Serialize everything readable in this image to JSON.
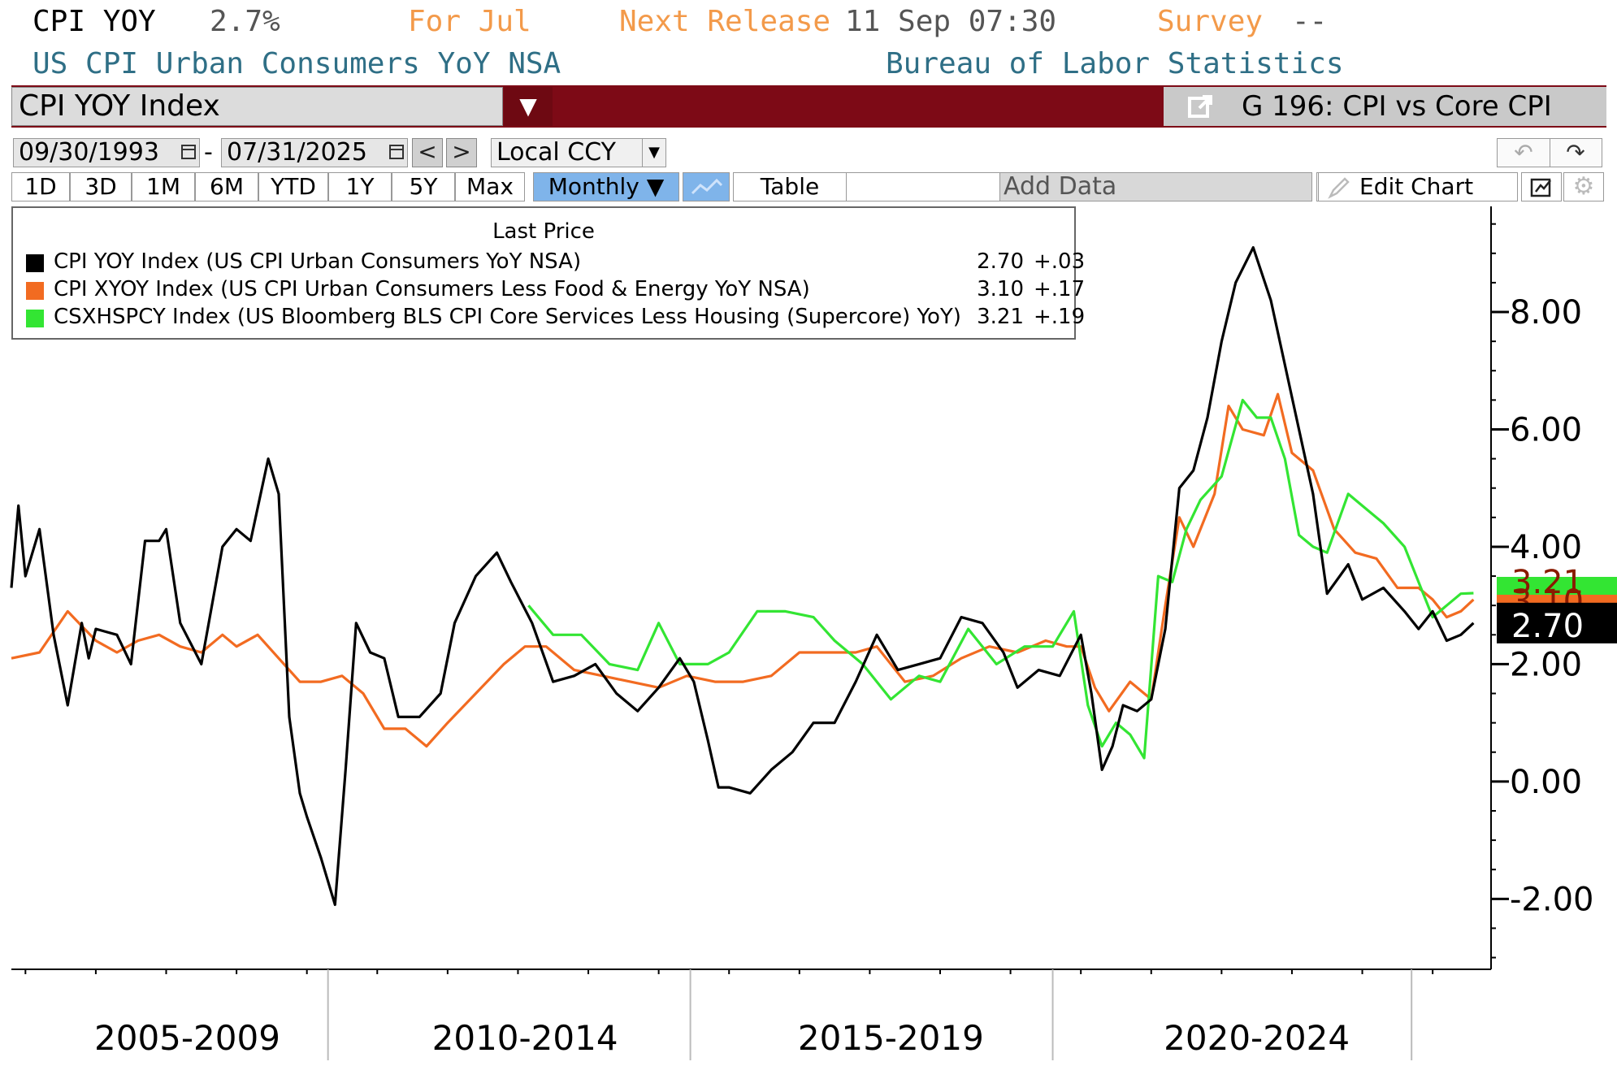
{
  "header": {
    "ticker": "CPI YOY",
    "last_value": "2.7%",
    "period_label": "For Jul",
    "release_label": "Next Release",
    "release_time": "11 Sep 07:30",
    "survey_label": "Survey",
    "survey_value": "--",
    "description": "US CPI Urban Consumers YoY NSA",
    "source": "Bureau of Labor Statistics"
  },
  "security": {
    "name": "CPI YOY Index",
    "chart_name": "G 196: CPI vs Core CPI"
  },
  "toolbar": {
    "start_date": "09/30/1993",
    "date_separator": "-",
    "end_date": "07/31/2025",
    "prev": "<",
    "next": ">",
    "currency": "Local CCY",
    "ranges": [
      "1D",
      "3D",
      "1M",
      "6M",
      "YTD",
      "1Y",
      "5Y",
      "Max"
    ],
    "frequency": "Monthly ▼",
    "table": "Table",
    "add_data": "Add Data",
    "edit_chart": "Edit Chart"
  },
  "legend": {
    "title": "Last Price",
    "rows": [
      {
        "name": "CPI YOY Index (US CPI Urban Consumers YoY NSA)",
        "value": "2.70",
        "change": "+.03",
        "color": "#000000"
      },
      {
        "name": "CPI XYOY Index (US CPI Urban Consumers Less Food & Energy YoY NSA)",
        "value": "3.10",
        "change": "+.17",
        "color": "#f26b21"
      },
      {
        "name": "CSXHSPCY Index (US Bloomberg BLS CPI Core Services Less Housing (Supercore) YoY)",
        "value": "3.21",
        "change": "+.19",
        "color": "#33e533"
      }
    ]
  },
  "chart_data": {
    "type": "line",
    "x_range": [
      2004.8,
      2025.83
    ],
    "ylim": [
      -3.2,
      9.8
    ],
    "y_ticks": [
      -2,
      0,
      2,
      4,
      6,
      8
    ],
    "y_tick_labels": [
      "-2.00",
      "0.00",
      "2.00",
      "4.00",
      "6.00",
      "8.00"
    ],
    "x_period_labels": [
      "2005-2009",
      "2010-2014",
      "2015-2019",
      "2020-2024"
    ],
    "x_period_centers": [
      2007.3,
      2012.1,
      2017.3,
      2022.5
    ],
    "x_period_dividers": [
      2009.3,
      2014.45,
      2019.6,
      2024.7
    ],
    "last_value_labels": [
      {
        "text": "3.21",
        "series": 2,
        "color": "#33e533"
      },
      {
        "text": "3.10",
        "series": 1,
        "color": "#f26b21"
      },
      {
        "text": "2.70",
        "series": 0,
        "color": "#000000"
      }
    ],
    "series": [
      {
        "color": "#000000",
        "x": [
          2004.8,
          2004.9,
          2005.0,
          2005.2,
          2005.4,
          2005.6,
          2005.8,
          2005.9,
          2006.0,
          2006.3,
          2006.5,
          2006.7,
          2006.9,
          2007.0,
          2007.2,
          2007.5,
          2007.8,
          2008.0,
          2008.2,
          2008.45,
          2008.6,
          2008.75,
          2008.9,
          2009.0,
          2009.2,
          2009.4,
          2009.55,
          2009.7,
          2009.9,
          2010.1,
          2010.3,
          2010.6,
          2010.9,
          2011.1,
          2011.4,
          2011.7,
          2011.9,
          2012.2,
          2012.5,
          2012.8,
          2013.1,
          2013.4,
          2013.7,
          2014.0,
          2014.3,
          2014.5,
          2014.7,
          2014.85,
          2015.0,
          2015.3,
          2015.6,
          2015.9,
          2016.2,
          2016.5,
          2016.8,
          2017.1,
          2017.4,
          2017.7,
          2018.0,
          2018.3,
          2018.6,
          2018.9,
          2019.1,
          2019.4,
          2019.7,
          2020.0,
          2020.15,
          2020.3,
          2020.45,
          2020.6,
          2020.8,
          2021.0,
          2021.2,
          2021.4,
          2021.6,
          2021.8,
          2022.0,
          2022.2,
          2022.45,
          2022.7,
          2022.9,
          2023.1,
          2023.3,
          2023.5,
          2023.8,
          2024.0,
          2024.3,
          2024.6,
          2024.8,
          2025.0,
          2025.2,
          2025.4,
          2025.58
        ],
        "values": [
          3.3,
          4.7,
          3.5,
          4.3,
          2.5,
          1.3,
          2.7,
          2.1,
          2.6,
          2.5,
          2.0,
          4.1,
          4.1,
          4.3,
          2.7,
          2.0,
          4.0,
          4.3,
          4.1,
          5.5,
          4.9,
          1.1,
          -0.2,
          -0.6,
          -1.3,
          -2.1,
          0.2,
          2.7,
          2.2,
          2.1,
          1.1,
          1.1,
          1.5,
          2.7,
          3.5,
          3.9,
          3.4,
          2.7,
          1.7,
          1.8,
          2.0,
          1.5,
          1.2,
          1.6,
          2.1,
          1.7,
          0.7,
          -0.1,
          -0.1,
          -0.2,
          0.2,
          0.5,
          1.0,
          1.0,
          1.7,
          2.5,
          1.9,
          2.0,
          2.1,
          2.8,
          2.7,
          2.2,
          1.6,
          1.9,
          1.8,
          2.5,
          1.5,
          0.2,
          0.6,
          1.3,
          1.2,
          1.4,
          2.6,
          5.0,
          5.3,
          6.2,
          7.5,
          8.5,
          9.1,
          8.2,
          7.1,
          6.0,
          4.9,
          3.2,
          3.7,
          3.1,
          3.3,
          2.9,
          2.6,
          2.9,
          2.4,
          2.5,
          2.7
        ]
      },
      {
        "color": "#f26b21",
        "x": [
          2004.8,
          2005.2,
          2005.6,
          2006.0,
          2006.3,
          2006.6,
          2006.9,
          2007.2,
          2007.5,
          2007.8,
          2008.0,
          2008.3,
          2008.6,
          2008.9,
          2009.2,
          2009.5,
          2009.8,
          2010.1,
          2010.4,
          2010.7,
          2011.0,
          2011.4,
          2011.8,
          2012.1,
          2012.4,
          2012.8,
          2013.2,
          2013.6,
          2014.0,
          2014.4,
          2014.8,
          2015.2,
          2015.6,
          2016.0,
          2016.4,
          2016.8,
          2017.1,
          2017.5,
          2017.9,
          2018.3,
          2018.7,
          2019.1,
          2019.5,
          2019.8,
          2020.0,
          2020.2,
          2020.4,
          2020.7,
          2021.0,
          2021.2,
          2021.4,
          2021.6,
          2021.9,
          2022.1,
          2022.3,
          2022.6,
          2022.8,
          2023.0,
          2023.3,
          2023.6,
          2023.9,
          2024.2,
          2024.5,
          2024.8,
          2025.0,
          2025.2,
          2025.4,
          2025.58
        ],
        "values": [
          2.1,
          2.2,
          2.9,
          2.4,
          2.2,
          2.4,
          2.5,
          2.3,
          2.2,
          2.5,
          2.3,
          2.5,
          2.1,
          1.7,
          1.7,
          1.8,
          1.5,
          0.9,
          0.9,
          0.6,
          1.0,
          1.5,
          2.0,
          2.3,
          2.3,
          1.9,
          1.8,
          1.7,
          1.6,
          1.8,
          1.7,
          1.7,
          1.8,
          2.2,
          2.2,
          2.2,
          2.3,
          1.7,
          1.8,
          2.1,
          2.3,
          2.2,
          2.4,
          2.3,
          2.3,
          1.6,
          1.2,
          1.7,
          1.4,
          3.0,
          4.5,
          4.0,
          4.9,
          6.4,
          6.0,
          5.9,
          6.6,
          5.6,
          5.3,
          4.3,
          3.9,
          3.8,
          3.3,
          3.3,
          3.1,
          2.8,
          2.9,
          3.1
        ]
      },
      {
        "color": "#33e533",
        "x": [
          2012.15,
          2012.5,
          2012.9,
          2013.3,
          2013.7,
          2014.0,
          2014.3,
          2014.7,
          2015.0,
          2015.4,
          2015.8,
          2016.2,
          2016.5,
          2016.9,
          2017.3,
          2017.7,
          2018.0,
          2018.4,
          2018.8,
          2019.2,
          2019.6,
          2019.9,
          2020.1,
          2020.3,
          2020.5,
          2020.7,
          2020.9,
          2021.1,
          2021.3,
          2021.5,
          2021.7,
          2022.0,
          2022.3,
          2022.5,
          2022.7,
          2022.9,
          2023.1,
          2023.3,
          2023.5,
          2023.8,
          2024.0,
          2024.3,
          2024.6,
          2024.8,
          2025.0,
          2025.2,
          2025.4,
          2025.58
        ],
        "values": [
          3.0,
          2.5,
          2.5,
          2.0,
          1.9,
          2.7,
          2.0,
          2.0,
          2.2,
          2.9,
          2.9,
          2.8,
          2.4,
          2.0,
          1.4,
          1.8,
          1.7,
          2.6,
          2.0,
          2.3,
          2.3,
          2.9,
          1.3,
          0.6,
          1.0,
          0.8,
          0.4,
          3.5,
          3.4,
          4.3,
          4.8,
          5.2,
          6.5,
          6.2,
          6.2,
          5.5,
          4.2,
          4.0,
          3.9,
          4.9,
          4.7,
          4.4,
          4.0,
          3.4,
          2.8,
          3.0,
          3.2,
          3.21
        ]
      }
    ]
  }
}
